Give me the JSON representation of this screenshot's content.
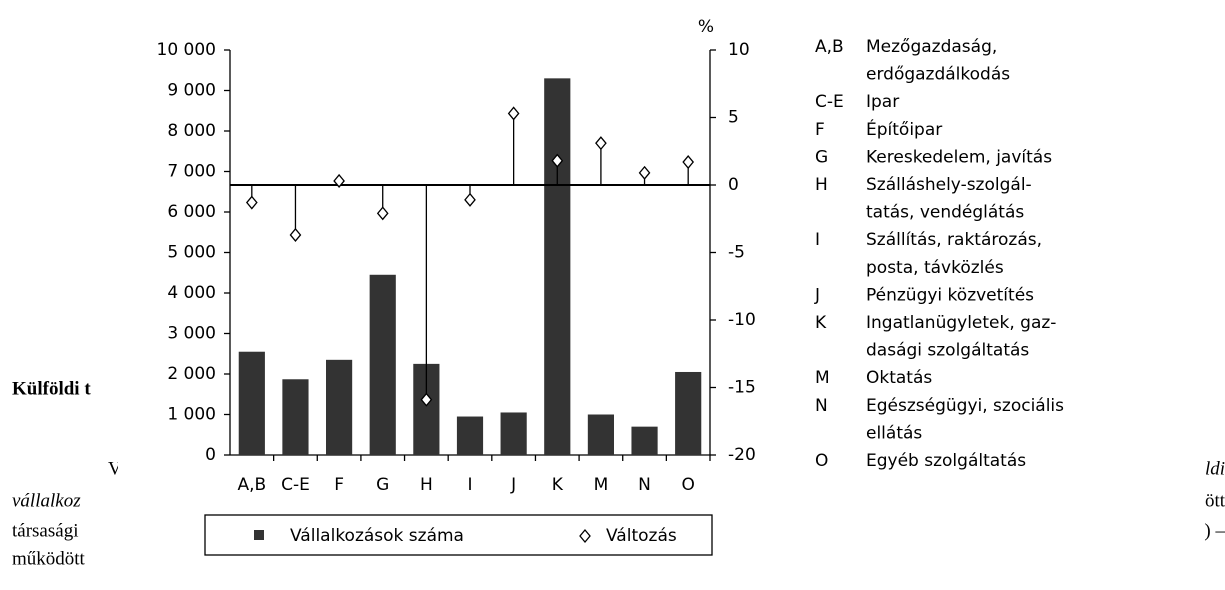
{
  "chart_data": {
    "type": "bar",
    "y2_label": "%",
    "categories": [
      "A,B",
      "C-E",
      "F",
      "G",
      "H",
      "I",
      "J",
      "K",
      "M",
      "N",
      "O"
    ],
    "series": [
      {
        "name": "Vállalkozások száma",
        "color": "#333333",
        "values": [
          2550,
          1870,
          2350,
          4450,
          2250,
          950,
          1050,
          9300,
          1000,
          700,
          2050
        ]
      },
      {
        "name": "Változás",
        "type": "stem",
        "marker": "diamond",
        "color": "#000000",
        "axis": "y2",
        "values": [
          -1.3,
          -3.7,
          0.3,
          -2.1,
          -15.9,
          -1.1,
          5.3,
          1.8,
          3.1,
          0.9,
          1.7
        ]
      }
    ],
    "ylim": [
      0,
      10000
    ],
    "yticks": [
      0,
      {
        "value": 1000,
        "label": "1 000"
      },
      {
        "value": 2000,
        "label": "2 000"
      },
      {
        "value": 3000,
        "label": "3 000"
      },
      {
        "value": 4000,
        "label": "4 000"
      },
      {
        "value": 5000,
        "label": "5 000"
      },
      {
        "value": 6000,
        "label": "6 000"
      },
      {
        "value": 7000,
        "label": "7 000"
      },
      {
        "value": 8000,
        "label": "8 000"
      },
      {
        "value": 9000,
        "label": "9 000"
      },
      {
        "value": 10000,
        "label": "10 000"
      }
    ],
    "y2lim": [
      -20,
      10
    ],
    "y2ticks": [
      -20,
      -15,
      -10,
      -5,
      0,
      5,
      10
    ],
    "legend": "bottom",
    "category_legend": [
      {
        "code": "A,B",
        "lines": [
          "Mezőgazdaság,",
          "erdőgazdálkodás"
        ]
      },
      {
        "code": "C-E",
        "lines": [
          "Ipar"
        ]
      },
      {
        "code": "F",
        "lines": [
          "Építőipar"
        ]
      },
      {
        "code": "G",
        "lines": [
          "Kereskedelem, javítás"
        ]
      },
      {
        "code": "H",
        "lines": [
          "Szálláshely-szolgál-",
          "tatás, vendéglátás"
        ]
      },
      {
        "code": "I",
        "lines": [
          "Szállítás, raktározás,",
          "posta, távközlés"
        ]
      },
      {
        "code": "J",
        "lines": [
          "Pénzügyi közvetítés"
        ]
      },
      {
        "code": "K",
        "lines": [
          "Ingatlanügyletek, gaz-",
          "dasági szolgáltatás"
        ]
      },
      {
        "code": "M",
        "lines": [
          "Oktatás"
        ]
      },
      {
        "code": "N",
        "lines": [
          "Egészségügyi, szociális",
          "ellátás"
        ]
      },
      {
        "code": "O",
        "lines": [
          "Egyéb szolgáltatás"
        ]
      }
    ]
  },
  "document": {
    "heading": "Külföldi t",
    "fragments_left": [
      "V",
      "vállalkoz",
      "társasági",
      "működött"
    ],
    "fragments_right": [
      "ldi",
      "ött",
      ") –"
    ]
  }
}
